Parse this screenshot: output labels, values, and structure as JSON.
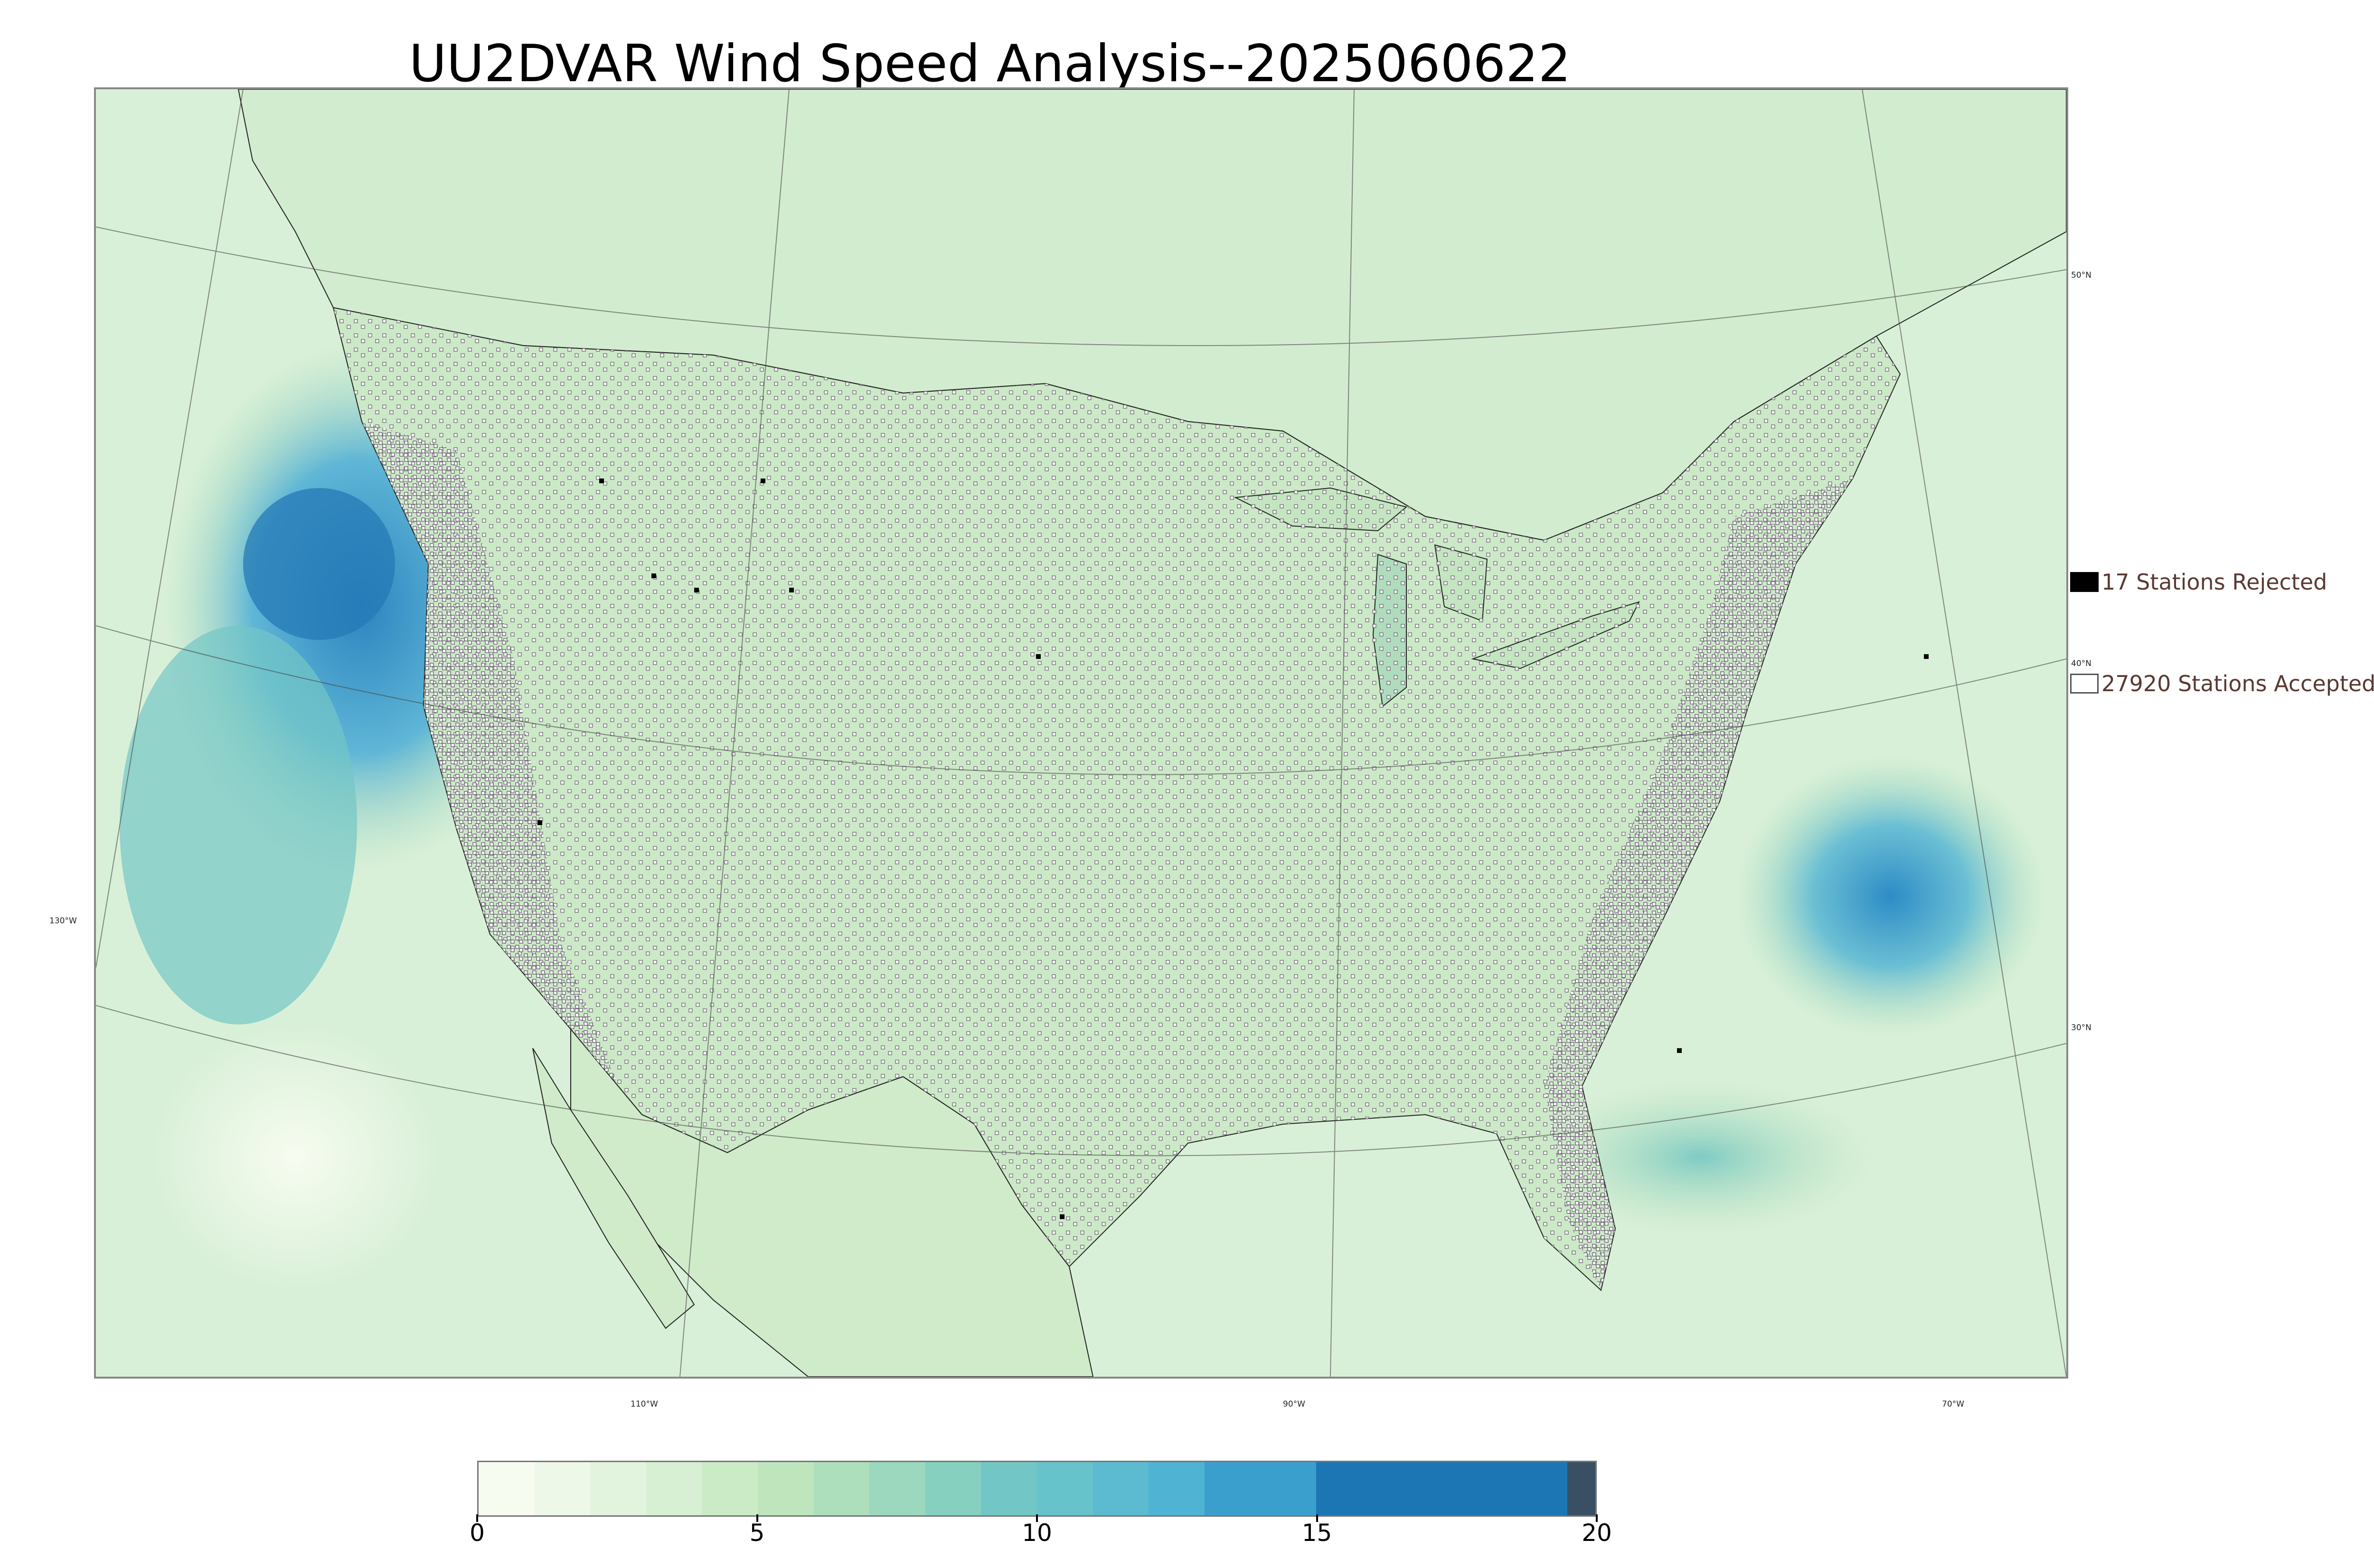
{
  "title": "UU2DVAR Wind Speed Analysis--2025060622",
  "map": {
    "projection": "lambert-conformal",
    "field": "wind-speed",
    "land_color": "#cfead2",
    "ocean_color": "#d9f0d8",
    "high_wind_color": "#1f78b4",
    "boundary_color": "#333333",
    "lat_labels": [
      "50°N",
      "40°N",
      "30°N"
    ],
    "lon_labels": [
      "130°W",
      "110°W",
      "90°W",
      "70°W"
    ]
  },
  "legend": {
    "rejected": {
      "label": "17 Stations Rejected",
      "color": "#000000"
    },
    "accepted": {
      "label": "27920 Stations Accepted",
      "color": "#ffffff"
    }
  },
  "colorbar": {
    "ticks": [
      "0",
      "5",
      "10",
      "15",
      "20"
    ],
    "min": 0,
    "max": 20,
    "stops": [
      {
        "from": 0,
        "to": 1,
        "color": "#f7fcf0"
      },
      {
        "from": 1,
        "to": 2,
        "color": "#eef8e9"
      },
      {
        "from": 2,
        "to": 3,
        "color": "#e3f4de"
      },
      {
        "from": 3,
        "to": 4,
        "color": "#d7efd2"
      },
      {
        "from": 4,
        "to": 5,
        "color": "#cbebc6"
      },
      {
        "from": 5,
        "to": 6,
        "color": "#bfe5bd"
      },
      {
        "from": 6,
        "to": 7,
        "color": "#aedfbc"
      },
      {
        "from": 7,
        "to": 8,
        "color": "#9bd8bd"
      },
      {
        "from": 8,
        "to": 9,
        "color": "#86d0c0"
      },
      {
        "from": 9,
        "to": 10,
        "color": "#72c7c6"
      },
      {
        "from": 10,
        "to": 11,
        "color": "#66c2cb"
      },
      {
        "from": 11,
        "to": 12,
        "color": "#5cbad1"
      },
      {
        "from": 12,
        "to": 13,
        "color": "#4fb3d4"
      },
      {
        "from": 13,
        "to": 15,
        "color": "#3a9fcd"
      },
      {
        "from": 15,
        "to": 19.5,
        "color": "#1c76b3"
      },
      {
        "from": 19.5,
        "to": 20,
        "color": "#384f64"
      }
    ]
  }
}
